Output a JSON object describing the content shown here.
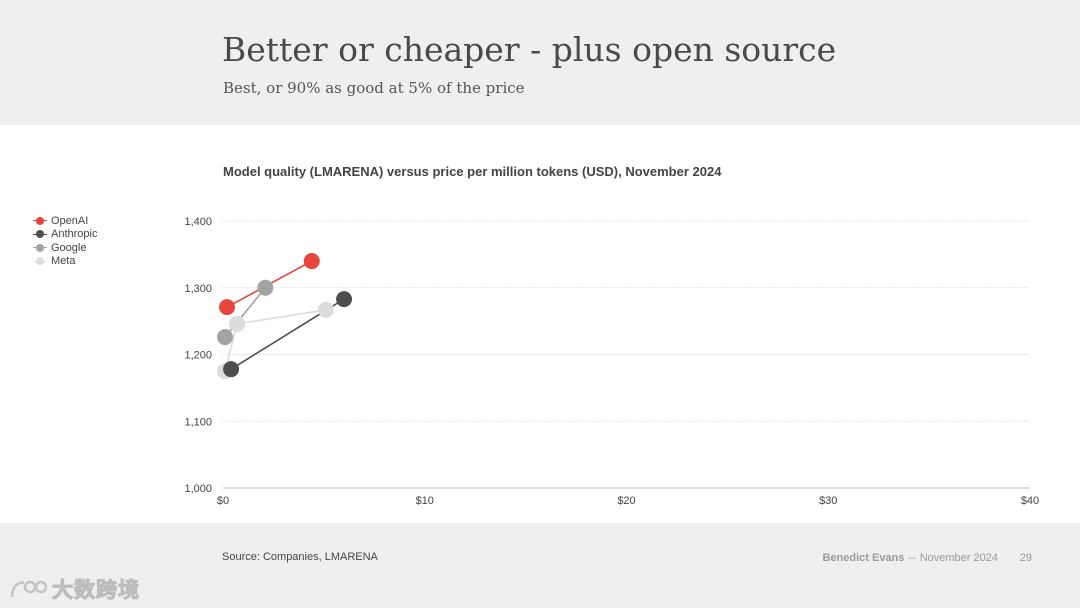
{
  "slide": {
    "title": "Better or cheaper - plus open source",
    "subtitle": "Best, or 90% as good at 5% of the price"
  },
  "footer": {
    "source": "Source: Companies, LMARENA",
    "author": "Benedict Evans",
    "separator": "--",
    "date": "November 2024",
    "page_number": "29"
  },
  "watermark": {
    "text": "大数跨境"
  },
  "colors": {
    "OpenAI": "#e8453c",
    "Anthropic": "#4d4d4d",
    "Google": "#a3a3a3",
    "Meta": "#dcdcdc",
    "grid": "#d0d0d0",
    "axis": "#bfbfbf"
  },
  "chart_data": {
    "type": "scatter",
    "title": "Model quality (LMARENA) versus price per million tokens (USD), November 2024",
    "xlabel": "",
    "ylabel": "",
    "xlim": [
      0,
      40
    ],
    "ylim": [
      1000,
      1400
    ],
    "x_ticks": [
      0,
      10,
      20,
      30,
      40
    ],
    "x_tick_labels": [
      "$0",
      "$10",
      "$20",
      "$30",
      "$40"
    ],
    "y_ticks": [
      1000,
      1100,
      1200,
      1300,
      1400
    ],
    "y_tick_labels": [
      "1,000",
      "1,100",
      "1,200",
      "1,300",
      "1,400"
    ],
    "legend_position": "left",
    "series": [
      {
        "name": "Meta",
        "points": [
          {
            "x": 0.1,
            "y": 1175
          },
          {
            "x": 0.7,
            "y": 1246
          },
          {
            "x": 5.1,
            "y": 1267
          }
        ]
      },
      {
        "name": "Google",
        "points": [
          {
            "x": 0.1,
            "y": 1226
          },
          {
            "x": 2.1,
            "y": 1300
          }
        ]
      },
      {
        "name": "Anthropic",
        "points": [
          {
            "x": 0.4,
            "y": 1178
          },
          {
            "x": 6.0,
            "y": 1283
          }
        ]
      },
      {
        "name": "OpenAI",
        "points": [
          {
            "x": 0.2,
            "y": 1271
          },
          {
            "x": 4.4,
            "y": 1340
          }
        ]
      }
    ],
    "legend_order": [
      "OpenAI",
      "Anthropic",
      "Google",
      "Meta"
    ]
  }
}
